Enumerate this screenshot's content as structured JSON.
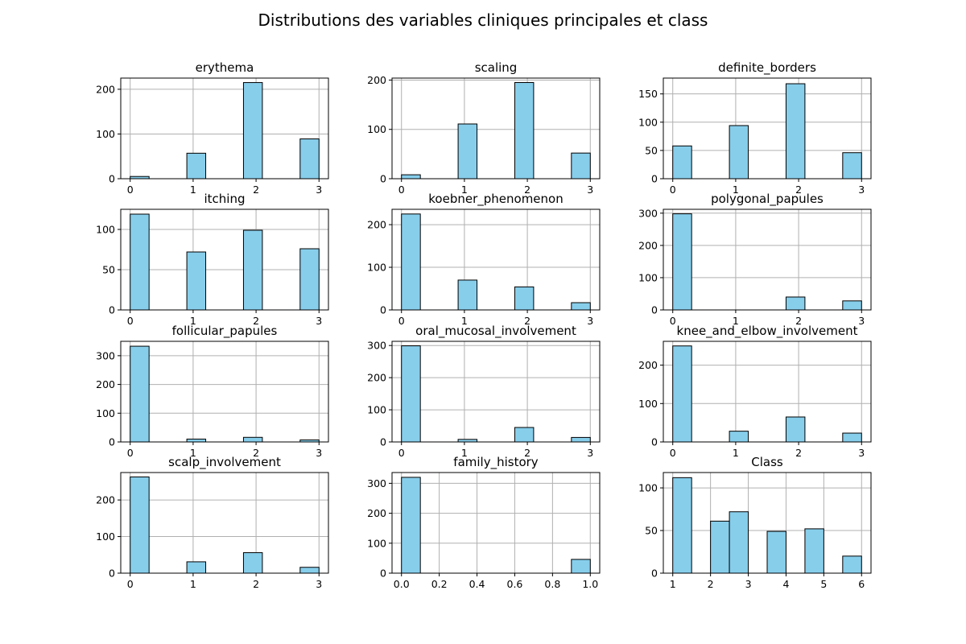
{
  "figure": {
    "title": "Distributions des variables cliniques principales et class",
    "bar_fill": "#87CEEB",
    "bar_edge": "#000000",
    "grid_color": "#b0b0b0"
  },
  "chart_data": [
    {
      "type": "bar",
      "title": "erythema",
      "grid": true,
      "xlim": [
        -0.15,
        3.15
      ],
      "ylim": [
        0,
        225
      ],
      "xticks": [
        0,
        1,
        2,
        3
      ],
      "xtick_labels": [
        "0",
        "1",
        "2",
        "3"
      ],
      "yticks": [
        0,
        100,
        200
      ],
      "ytick_labels": [
        "0",
        "100",
        "200"
      ],
      "bins": [
        [
          0,
          0.3,
          5
        ],
        [
          0.9,
          1.2,
          57
        ],
        [
          1.8,
          2.1,
          215
        ],
        [
          2.7,
          3.0,
          89
        ]
      ]
    },
    {
      "type": "bar",
      "title": "scaling",
      "grid": true,
      "xlim": [
        -0.15,
        3.15
      ],
      "ylim": [
        0,
        204
      ],
      "xticks": [
        0,
        1,
        2,
        3
      ],
      "xtick_labels": [
        "0",
        "1",
        "2",
        "3"
      ],
      "yticks": [
        0,
        100,
        200
      ],
      "ytick_labels": [
        "0",
        "100",
        "200"
      ],
      "bins": [
        [
          0,
          0.3,
          8
        ],
        [
          0.9,
          1.2,
          111
        ],
        [
          1.8,
          2.1,
          195
        ],
        [
          2.7,
          3.0,
          52
        ]
      ]
    },
    {
      "type": "bar",
      "title": "definite_borders",
      "grid": true,
      "xlim": [
        -0.15,
        3.15
      ],
      "ylim": [
        0,
        178
      ],
      "xticks": [
        0,
        1,
        2,
        3
      ],
      "xtick_labels": [
        "0",
        "1",
        "2",
        "3"
      ],
      "yticks": [
        0,
        50,
        100,
        150
      ],
      "ytick_labels": [
        "0",
        "50",
        "100",
        "150"
      ],
      "bins": [
        [
          0,
          0.3,
          58
        ],
        [
          0.9,
          1.2,
          94
        ],
        [
          1.8,
          2.1,
          168
        ],
        [
          2.7,
          3.0,
          46
        ]
      ]
    },
    {
      "type": "bar",
      "title": "itching",
      "grid": true,
      "xlim": [
        -0.15,
        3.15
      ],
      "ylim": [
        0,
        125
      ],
      "xticks": [
        0,
        1,
        2,
        3
      ],
      "xtick_labels": [
        "0",
        "1",
        "2",
        "3"
      ],
      "yticks": [
        0,
        50,
        100
      ],
      "ytick_labels": [
        "0",
        "50",
        "100"
      ],
      "bins": [
        [
          0,
          0.3,
          119
        ],
        [
          0.9,
          1.2,
          72
        ],
        [
          1.8,
          2.1,
          99
        ],
        [
          2.7,
          3.0,
          76
        ]
      ]
    },
    {
      "type": "bar",
      "title": "koebner_phenomenon",
      "grid": true,
      "xlim": [
        -0.15,
        3.15
      ],
      "ylim": [
        0,
        236
      ],
      "xticks": [
        0,
        1,
        2,
        3
      ],
      "xtick_labels": [
        "0",
        "1",
        "2",
        "3"
      ],
      "yticks": [
        0,
        100,
        200
      ],
      "ytick_labels": [
        "0",
        "100",
        "200"
      ],
      "bins": [
        [
          0,
          0.3,
          225
        ],
        [
          0.9,
          1.2,
          70
        ],
        [
          1.8,
          2.1,
          54
        ],
        [
          2.7,
          3.0,
          17
        ]
      ]
    },
    {
      "type": "bar",
      "title": "polygonal_papules",
      "grid": true,
      "xlim": [
        -0.15,
        3.15
      ],
      "ylim": [
        0,
        312
      ],
      "xticks": [
        0,
        1,
        2,
        3
      ],
      "xtick_labels": [
        "0",
        "1",
        "2",
        "3"
      ],
      "yticks": [
        0,
        100,
        200,
        300
      ],
      "ytick_labels": [
        "0",
        "100",
        "200",
        "300"
      ],
      "bins": [
        [
          0,
          0.3,
          298
        ],
        [
          0.9,
          1.2,
          0
        ],
        [
          1.8,
          2.1,
          40
        ],
        [
          2.7,
          3.0,
          28
        ]
      ]
    },
    {
      "type": "bar",
      "title": "follicular_papules",
      "grid": true,
      "xlim": [
        -0.15,
        3.15
      ],
      "ylim": [
        0,
        350
      ],
      "xticks": [
        0,
        1,
        2,
        3
      ],
      "xtick_labels": [
        "0",
        "1",
        "2",
        "3"
      ],
      "yticks": [
        0,
        100,
        200,
        300
      ],
      "ytick_labels": [
        "0",
        "100",
        "200",
        "300"
      ],
      "bins": [
        [
          0,
          0.3,
          333
        ],
        [
          0.9,
          1.2,
          10
        ],
        [
          1.8,
          2.1,
          16
        ],
        [
          2.7,
          3.0,
          7
        ]
      ]
    },
    {
      "type": "bar",
      "title": "oral_mucosal_involvement",
      "grid": true,
      "xlim": [
        -0.15,
        3.15
      ],
      "ylim": [
        0,
        313
      ],
      "xticks": [
        0,
        1,
        2,
        3
      ],
      "xtick_labels": [
        "0",
        "1",
        "2",
        "3"
      ],
      "yticks": [
        0,
        100,
        200,
        300
      ],
      "ytick_labels": [
        "0",
        "100",
        "200",
        "300"
      ],
      "bins": [
        [
          0,
          0.3,
          299
        ],
        [
          0.9,
          1.2,
          8
        ],
        [
          1.8,
          2.1,
          45
        ],
        [
          2.7,
          3.0,
          14
        ]
      ]
    },
    {
      "type": "bar",
      "title": "knee_and_elbow_involvement",
      "grid": true,
      "xlim": [
        -0.15,
        3.15
      ],
      "ylim": [
        0,
        262
      ],
      "xticks": [
        0,
        1,
        2,
        3
      ],
      "xtick_labels": [
        "0",
        "1",
        "2",
        "3"
      ],
      "yticks": [
        0,
        100,
        200
      ],
      "ytick_labels": [
        "0",
        "100",
        "200"
      ],
      "bins": [
        [
          0,
          0.3,
          250
        ],
        [
          0.9,
          1.2,
          28
        ],
        [
          1.8,
          2.1,
          65
        ],
        [
          2.7,
          3.0,
          23
        ]
      ]
    },
    {
      "type": "bar",
      "title": "scalp_involvement",
      "grid": true,
      "xlim": [
        -0.15,
        3.15
      ],
      "ylim": [
        0,
        275
      ],
      "xticks": [
        0,
        1,
        2,
        3
      ],
      "xtick_labels": [
        "0",
        "1",
        "2",
        "3"
      ],
      "yticks": [
        0,
        100,
        200
      ],
      "ytick_labels": [
        "0",
        "100",
        "200"
      ],
      "bins": [
        [
          0,
          0.3,
          263
        ],
        [
          0.9,
          1.2,
          31
        ],
        [
          1.8,
          2.1,
          56
        ],
        [
          2.7,
          3.0,
          16
        ]
      ]
    },
    {
      "type": "bar",
      "title": "family_history",
      "grid": true,
      "xlim": [
        -0.05,
        1.05
      ],
      "ylim": [
        0,
        336
      ],
      "xticks": [
        0,
        0.2,
        0.4,
        0.6,
        0.8,
        1.0
      ],
      "xtick_labels": [
        "0.0",
        "0.2",
        "0.4",
        "0.6",
        "0.8",
        "1.0"
      ],
      "yticks": [
        0,
        100,
        200,
        300
      ],
      "ytick_labels": [
        "0",
        "100",
        "200",
        "300"
      ],
      "bins": [
        [
          0,
          0.1,
          320
        ],
        [
          0.9,
          1.0,
          46
        ]
      ]
    },
    {
      "type": "bar",
      "title": "Class",
      "grid": true,
      "xlim": [
        0.75,
        6.25
      ],
      "ylim": [
        0,
        118
      ],
      "xticks": [
        1,
        2,
        3,
        4,
        5,
        6
      ],
      "xtick_labels": [
        "1",
        "2",
        "3",
        "4",
        "5",
        "6"
      ],
      "yticks": [
        0,
        50,
        100
      ],
      "ytick_labels": [
        "0",
        "50",
        "100"
      ],
      "bins": [
        [
          1.0,
          1.5,
          112
        ],
        [
          2.0,
          2.5,
          61
        ],
        [
          2.5,
          3.0,
          72
        ],
        [
          3.5,
          4.0,
          49
        ],
        [
          4.5,
          5.0,
          52
        ],
        [
          5.5,
          6.0,
          20
        ]
      ]
    }
  ]
}
